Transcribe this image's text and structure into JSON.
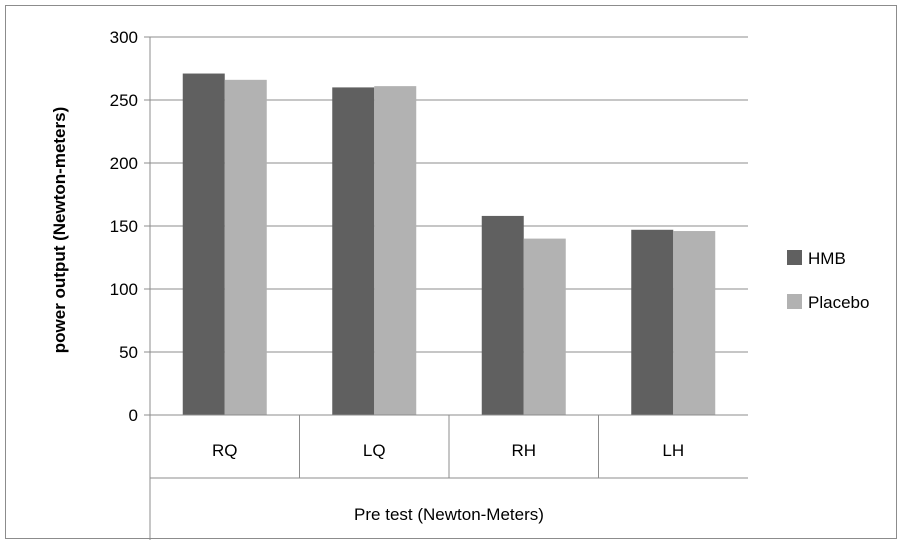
{
  "chart_data": {
    "type": "bar",
    "title": "",
    "xlabel": "Pre test (Newton-Meters)",
    "ylabel": "power output (Newton-meters)",
    "categories": [
      "RQ",
      "LQ",
      "RH",
      "LH"
    ],
    "series": [
      {
        "name": "HMB",
        "values": [
          271,
          260,
          158,
          147
        ],
        "color": "#606060"
      },
      {
        "name": "Placebo",
        "values": [
          266,
          261,
          140,
          146
        ],
        "color": "#b2b2b2"
      }
    ],
    "ylim": [
      0,
      300
    ],
    "yticks": [
      0,
      50,
      100,
      150,
      200,
      250,
      300
    ],
    "grid": true,
    "legend_position": "right"
  }
}
